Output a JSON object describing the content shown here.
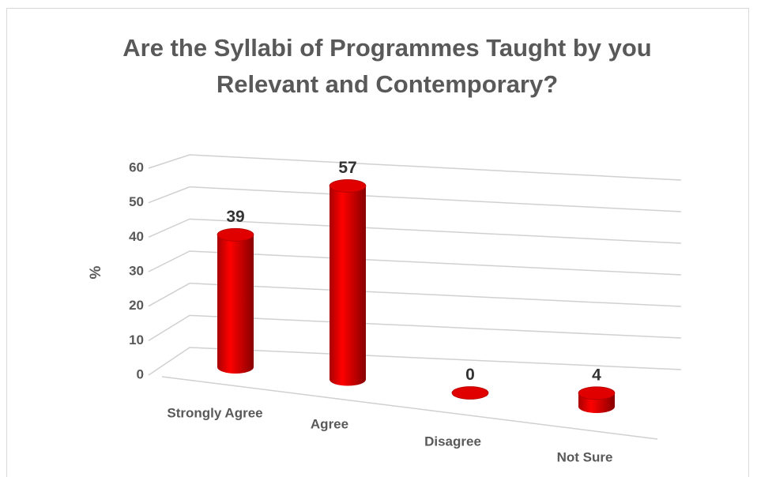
{
  "chart_data": {
    "type": "bar3d",
    "title": "Are the Syllabi of Programmes Taught by you Relevant and Contemporary?",
    "y_label": "%",
    "categories": [
      "Strongly Agree",
      "Agree",
      "Disagree",
      "Not Sure"
    ],
    "values": [
      39,
      57,
      0,
      4
    ],
    "color": "#e00000",
    "ylim": [
      0,
      60
    ],
    "yticks": [
      0,
      10,
      20,
      30,
      40,
      50,
      60
    ],
    "grid": true
  }
}
